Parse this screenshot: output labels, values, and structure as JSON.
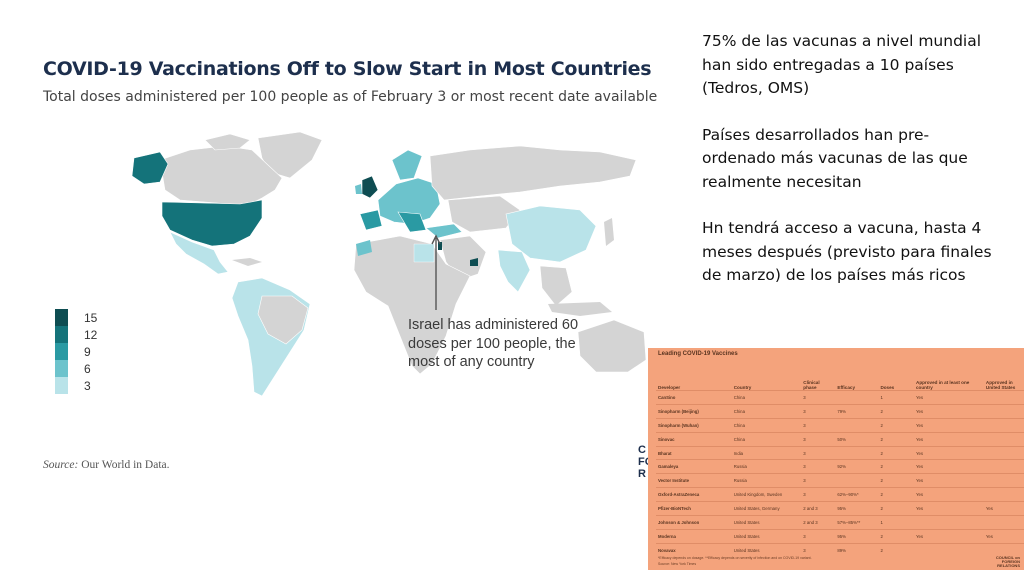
{
  "map": {
    "title": "COVID-19 Vaccinations Off to Slow Start in Most Countries",
    "subtitle": "Total doses administered per 100 people as of February 3 or most recent date available",
    "legend": [
      {
        "label": "15",
        "color": "#0e4d52"
      },
      {
        "label": "12",
        "color": "#14737a"
      },
      {
        "label": "9",
        "color": "#2a9aa3"
      },
      {
        "label": "6",
        "color": "#6cc3cc"
      },
      {
        "label": "3",
        "color": "#b9e3e9"
      }
    ],
    "annotation": "Israel has administered 60 doses per 100 people, the most of any country",
    "source_label": "Source:",
    "source_text": " Our World in Data.",
    "cfr_mark": "C\nFO\nR"
  },
  "notes": [
    "75% de las vacunas a nivel mundial han sido entregadas a 10 países (Tedros, OMS)",
    "Países desarrollados han pre-ordenado más vacunas de las que realmente necesitan",
    "Hn tendrá acceso a vacuna, hasta 4 meses después (previsto para finales de marzo) de los países más ricos"
  ],
  "vaccine_table": {
    "title": "Leading COVID-19 Vaccines",
    "headers": [
      "Developer",
      "Country",
      "Clinical phase",
      "Efficacy",
      "Doses",
      "Approved in at least one country",
      "Approved in United States"
    ],
    "rows": [
      [
        "CanSino",
        "China",
        "3",
        "",
        "1",
        "Yes",
        ""
      ],
      [
        "Sinopharm (Beijing)",
        "China",
        "3",
        "79%",
        "2",
        "Yes",
        ""
      ],
      [
        "Sinopharm (Wuhan)",
        "China",
        "3",
        "",
        "2",
        "Yes",
        ""
      ],
      [
        "Sinovac",
        "China",
        "3",
        "50%",
        "2",
        "Yes",
        ""
      ],
      [
        "Bharat",
        "India",
        "3",
        "",
        "2",
        "Yes",
        ""
      ],
      [
        "Gamaleya",
        "Russia",
        "3",
        "92%",
        "2",
        "Yes",
        ""
      ],
      [
        "Vector Institute",
        "Russia",
        "3",
        "",
        "2",
        "Yes",
        ""
      ],
      [
        "Oxford-AstraZeneca",
        "United Kingdom, Sweden",
        "3",
        "62%–90%*",
        "2",
        "Yes",
        ""
      ],
      [
        "Pfizer-BioNTech",
        "United States, Germany",
        "2 and 3",
        "95%",
        "2",
        "Yes",
        "Yes"
      ],
      [
        "Johnson & Johnson",
        "United States",
        "2 and 3",
        "57%–85%**",
        "1",
        "",
        ""
      ],
      [
        "Moderna",
        "United States",
        "3",
        "95%",
        "2",
        "Yes",
        "Yes"
      ],
      [
        "Novavax",
        "United States",
        "3",
        "89%",
        "2",
        "",
        ""
      ]
    ],
    "footnote": "*Efficacy depends on dosage. **Efficacy depends on severity of infection and on COVID-19 variant.",
    "footnote2": "Source: New York Times",
    "logo": "COUNCIL on\nFOREIGN\nRELATIONS"
  }
}
